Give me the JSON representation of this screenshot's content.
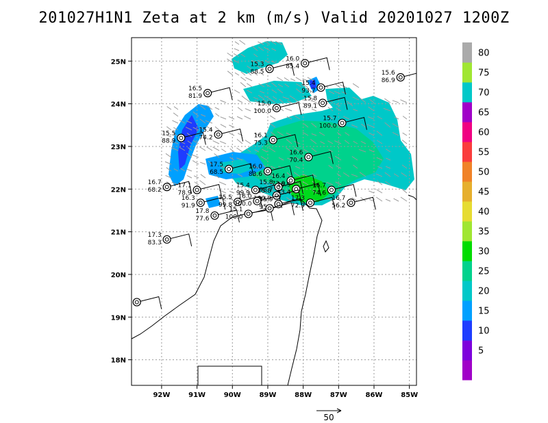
{
  "title": "201027H1N1 Zeta at 2 km (m/s) Valid 20201027 1200Z",
  "map": {
    "lon_range": [
      -92.85,
      -84.8
    ],
    "lat_range": [
      17.4,
      25.55
    ],
    "lon_ticks": [
      {
        "value": -92,
        "label": "92W"
      },
      {
        "value": -91,
        "label": "91W"
      },
      {
        "value": -90,
        "label": "90W"
      },
      {
        "value": -89,
        "label": "89W"
      },
      {
        "value": -88,
        "label": "88W"
      },
      {
        "value": -87,
        "label": "87W"
      },
      {
        "value": -86,
        "label": "86W"
      },
      {
        "value": -85,
        "label": "85W"
      }
    ],
    "lat_ticks": [
      {
        "value": 18,
        "label": "18N"
      },
      {
        "value": 19,
        "label": "19N"
      },
      {
        "value": 20,
        "label": "20N"
      },
      {
        "value": 21,
        "label": "21N"
      },
      {
        "value": 22,
        "label": "22N"
      },
      {
        "value": 23,
        "label": "23N"
      },
      {
        "value": 24,
        "label": "24N"
      },
      {
        "value": 25,
        "label": "25N"
      }
    ],
    "grid": true
  },
  "colorbar": {
    "levels": [
      {
        "label": "",
        "color": "#a000c8"
      },
      {
        "label": "5",
        "color": "#7d00dc"
      },
      {
        "label": "10",
        "color": "#1e3cff"
      },
      {
        "label": "15",
        "color": "#00a0ff"
      },
      {
        "label": "20",
        "color": "#00c8c8"
      },
      {
        "label": "25",
        "color": "#00d28c"
      },
      {
        "label": "30",
        "color": "#00dc00"
      },
      {
        "label": "35",
        "color": "#a0e632"
      },
      {
        "label": "40",
        "color": "#e6dc32"
      },
      {
        "label": "45",
        "color": "#e6af2d"
      },
      {
        "label": "50",
        "color": "#f08228"
      },
      {
        "label": "55",
        "color": "#fa3c3c"
      },
      {
        "label": "60",
        "color": "#f00082"
      },
      {
        "label": "65",
        "color": "#a000c8"
      },
      {
        "label": "70",
        "color": "#00c8c8"
      },
      {
        "label": "75",
        "color": "#a0e632"
      },
      {
        "label": "80",
        "color": "#aaaaaa"
      }
    ]
  },
  "vector_reference": {
    "label": "50"
  },
  "chart_data": {
    "type": "scatter",
    "title": "201027H1N1 Zeta at 2 km (m/s) Valid 20201027 1200Z",
    "xlabel": "",
    "ylabel": "",
    "stations": [
      {
        "lon": -88.95,
        "lat": 24.82,
        "top": "15.3",
        "bottom": "88.5"
      },
      {
        "lon": -87.95,
        "lat": 24.95,
        "top": "16.0",
        "bottom": "85.4"
      },
      {
        "lon": -85.25,
        "lat": 24.62,
        "top": "15.6",
        "bottom": "86.9"
      },
      {
        "lon": -87.5,
        "lat": 24.38,
        "top": "15.4",
        "bottom": "93.7"
      },
      {
        "lon": -90.7,
        "lat": 24.25,
        "top": "16.5",
        "bottom": "81.9"
      },
      {
        "lon": -88.75,
        "lat": 23.9,
        "top": "15.0",
        "bottom": "100.0"
      },
      {
        "lon": -87.45,
        "lat": 24.02,
        "top": "15.8",
        "bottom": "89.1"
      },
      {
        "lon": -86.9,
        "lat": 23.55,
        "top": "15.7",
        "bottom": "100.0"
      },
      {
        "lon": -91.45,
        "lat": 23.2,
        "top": "15.5",
        "bottom": "88.9"
      },
      {
        "lon": -90.4,
        "lat": 23.28,
        "top": "15.4",
        "bottom": "74.2"
      },
      {
        "lon": -88.85,
        "lat": 23.15,
        "top": "16.1",
        "bottom": "75.3"
      },
      {
        "lon": -87.85,
        "lat": 22.75,
        "top": "16.6",
        "bottom": "70.4"
      },
      {
        "lon": -90.1,
        "lat": 22.47,
        "top": "17.5",
        "bottom": "68.5"
      },
      {
        "lon": -89.0,
        "lat": 22.42,
        "top": "16.0",
        "bottom": "83.6"
      },
      {
        "lon": -88.35,
        "lat": 22.2,
        "top": "16.4",
        "bottom": "72.9"
      },
      {
        "lon": -91.85,
        "lat": 22.05,
        "top": "16.7",
        "bottom": "68.2"
      },
      {
        "lon": -91.0,
        "lat": 21.98,
        "top": "17.1",
        "bottom": "78.9"
      },
      {
        "lon": -89.35,
        "lat": 21.98,
        "top": "15.4",
        "bottom": "99.9"
      },
      {
        "lon": -88.7,
        "lat": 22.05,
        "top": "15.8",
        "bottom": "98.7"
      },
      {
        "lon": -88.2,
        "lat": 22.0,
        "top": "16.9",
        "bottom": "83.4"
      },
      {
        "lon": -87.2,
        "lat": 21.98,
        "top": "16.7",
        "bottom": "74.6"
      },
      {
        "lon": -88.75,
        "lat": 21.85,
        "top": "15.8",
        "bottom": "100.0"
      },
      {
        "lon": -90.9,
        "lat": 21.68,
        "top": "16.3",
        "bottom": "91.9"
      },
      {
        "lon": -89.85,
        "lat": 21.7,
        "top": "15.5",
        "bottom": "99.8"
      },
      {
        "lon": -89.3,
        "lat": 21.72,
        "top": "16.0",
        "bottom": "100.0"
      },
      {
        "lon": -88.7,
        "lat": 21.65,
        "top": "15.9",
        "bottom": "95.2"
      },
      {
        "lon": -87.8,
        "lat": 21.68,
        "top": "17.3",
        "bottom": "72.9"
      },
      {
        "lon": -86.65,
        "lat": 21.68,
        "top": "16.7",
        "bottom": "56.2"
      },
      {
        "lon": -90.5,
        "lat": 21.38,
        "top": "17.8",
        "bottom": "77.6"
      },
      {
        "lon": -89.55,
        "lat": 21.42,
        "top": "15.1",
        "bottom": "100.0"
      },
      {
        "lon": -88.95,
        "lat": 21.55,
        "top": "",
        "bottom": ""
      },
      {
        "lon": -91.85,
        "lat": 20.82,
        "top": "17.3",
        "bottom": "83.3"
      },
      {
        "lon": -92.7,
        "lat": 19.35,
        "top": "",
        "bottom": ""
      }
    ]
  }
}
